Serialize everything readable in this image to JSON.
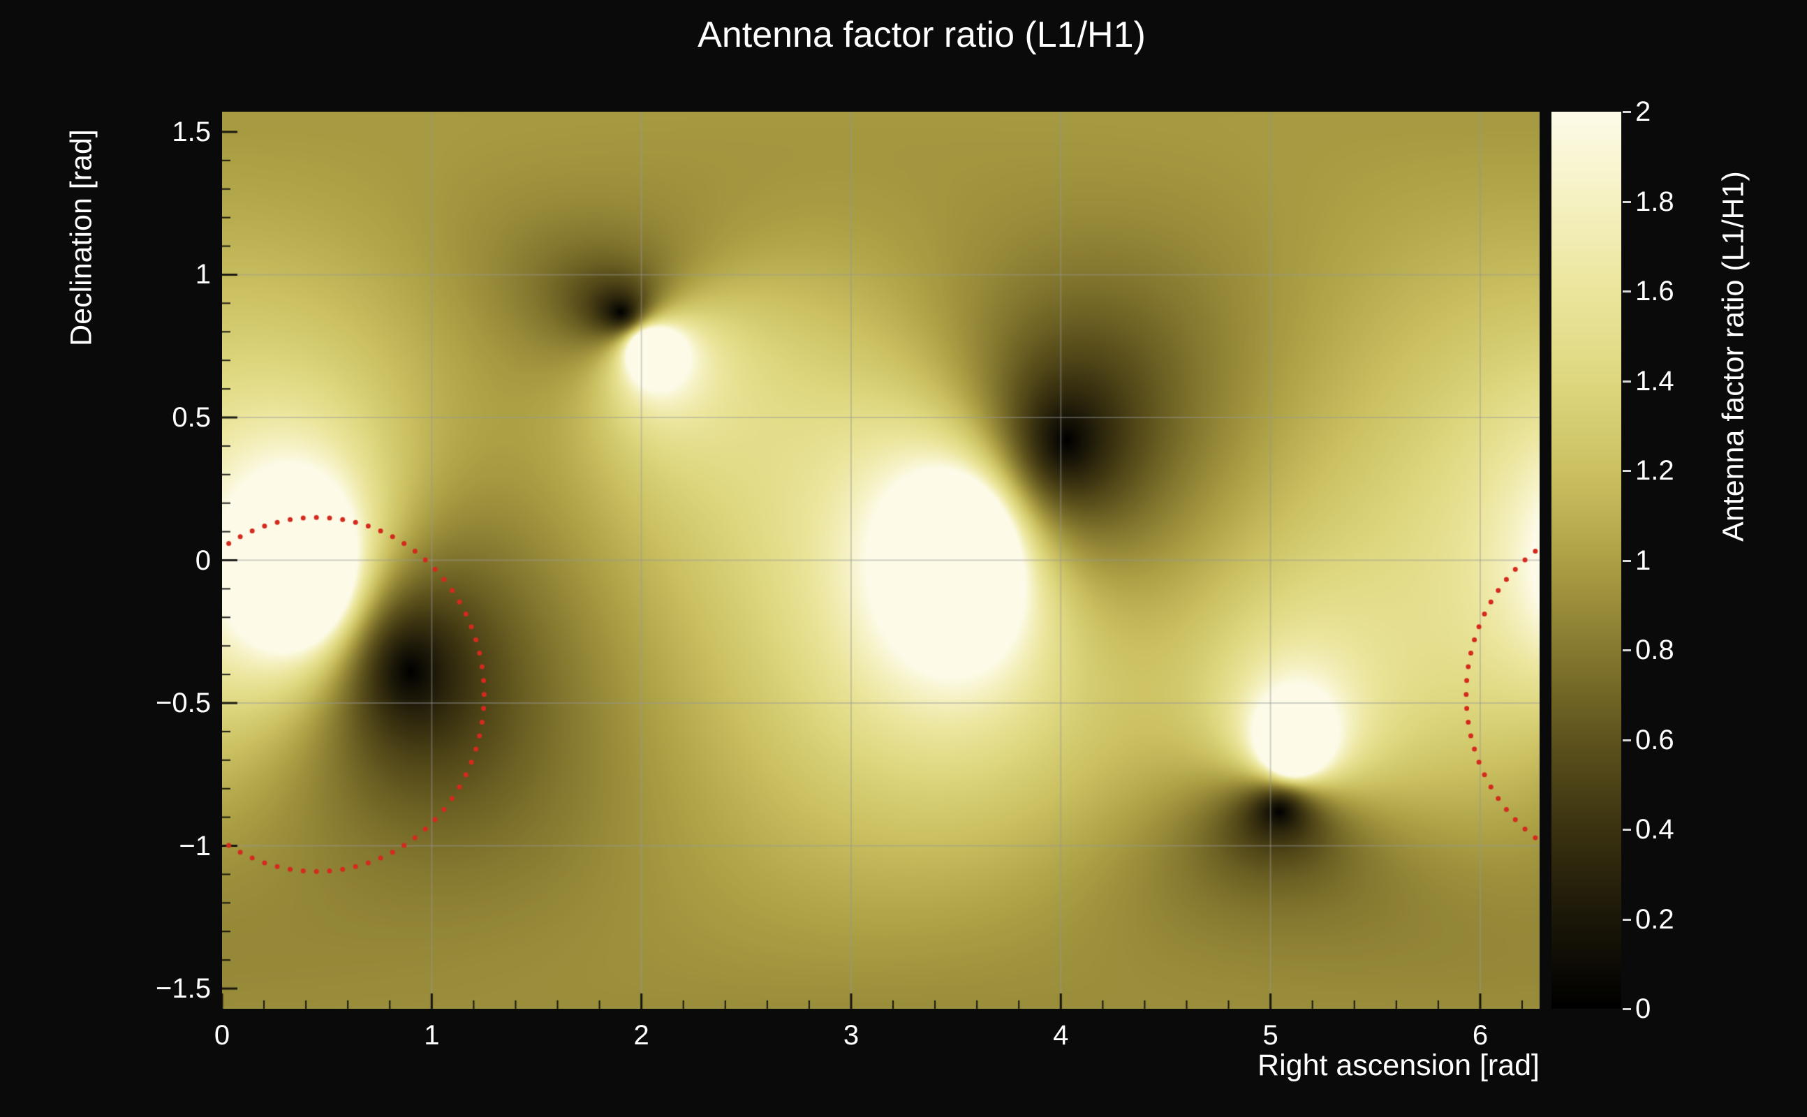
{
  "page": {
    "background_color": "#0a0a0a",
    "text_color": "#ffffff"
  },
  "chart_data": {
    "type": "heatmap",
    "title": "Antenna factor ratio (L1/H1)",
    "xlabel": "Right ascension [rad]",
    "ylabel": "Declination [rad]",
    "colorbar_label": "Antenna factor ratio (L1/H1)",
    "x_range": [
      0,
      6.283185
    ],
    "y_range": [
      -1.570796,
      1.570796
    ],
    "z_range": [
      0,
      2
    ],
    "grid": {
      "x_values": [
        1,
        2,
        3,
        4,
        5,
        6
      ],
      "y_values": [
        -1,
        -0.5,
        0,
        0.5,
        1
      ],
      "color": "rgba(150,150,150,0.45)"
    },
    "x_ticks": {
      "values": [
        0,
        1,
        2,
        3,
        4,
        5,
        6
      ],
      "labels": [
        "0",
        "1",
        "2",
        "3",
        "4",
        "5",
        "6"
      ]
    },
    "y_ticks": {
      "values": [
        -1.5,
        -1,
        -0.5,
        0,
        0.5,
        1,
        1.5
      ],
      "labels": [
        "−1.5",
        "−1",
        "−0.5",
        "0",
        "0.5",
        "1",
        "1.5"
      ]
    },
    "colorbar_ticks": {
      "values": [
        0,
        0.2,
        0.4,
        0.6,
        0.8,
        1,
        1.2,
        1.4,
        1.6,
        1.8,
        2
      ],
      "labels": [
        "0",
        "0.2",
        "0.4",
        "0.6",
        "0.8",
        "1",
        "1.2",
        "1.4",
        "1.6",
        "1.8",
        "2"
      ]
    },
    "field_model": {
      "normalization": 1.15,
      "l1_null_points_radec": [
        [
          0.9,
          -0.39
        ],
        [
          1.9,
          0.87
        ],
        [
          4.03,
          0.42
        ],
        [
          5.04,
          -0.88
        ]
      ],
      "h1_null_points_radec": [
        [
          0.42,
          -0.06
        ],
        [
          3.56,
          0.04
        ],
        [
          2.03,
          0.75
        ],
        [
          5.1,
          -0.68
        ]
      ]
    },
    "colormap_stops": [
      [
        0.0,
        "#000000"
      ],
      [
        0.2,
        "#1b1708"
      ],
      [
        0.4,
        "#3a3210"
      ],
      [
        0.6,
        "#5e531d"
      ],
      [
        0.8,
        "#867930"
      ],
      [
        1.0,
        "#aca045"
      ],
      [
        1.2,
        "#cbc162"
      ],
      [
        1.4,
        "#ded77f"
      ],
      [
        1.6,
        "#ebe59c"
      ],
      [
        1.8,
        "#f5f1c1"
      ],
      [
        2.0,
        "#fdfbe8"
      ]
    ],
    "contour_ring": {
      "color": "#d42a1e",
      "style": "dotted",
      "center_radec": [
        0.45,
        -0.47
      ],
      "radius_ra": 0.8,
      "radius_dec": 0.62,
      "dot_count": 80,
      "dot_radius": 3.5
    }
  }
}
